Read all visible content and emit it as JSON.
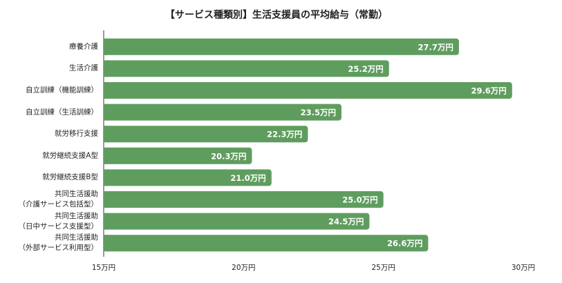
{
  "chart_data": {
    "type": "barh",
    "title": "【サービス種類別】生活支援員の平均給与（常勤）",
    "categories": [
      "療養介護",
      "生活介護",
      "自立訓練（機能訓練）",
      "自立訓練（生活訓練）",
      "就労移行支援",
      "就労継続支援A型",
      "就労継続支援B型",
      "共同生活援助\n（介護サービス包括型）",
      "共同生活援助\n（日中サービス支援型）",
      "共同生活援助\n（外部サービス利用型）"
    ],
    "values": [
      27.7,
      25.2,
      29.6,
      23.5,
      22.3,
      20.3,
      21.0,
      25.0,
      24.5,
      26.6
    ],
    "value_labels": [
      "27.7万円",
      "25.2万円",
      "29.6万円",
      "23.5万円",
      "22.3万円",
      "20.3万円",
      "21.0万円",
      "25.0万円",
      "24.5万円",
      "26.6万円"
    ],
    "color": "#5f9d5f",
    "xlim": [
      15,
      30
    ],
    "xticks": [
      {
        "value": 15,
        "label": "15万円"
      },
      {
        "value": 20,
        "label": "20万円"
      },
      {
        "value": 25,
        "label": "25万円"
      },
      {
        "value": 30,
        "label": "30万円"
      }
    ]
  }
}
